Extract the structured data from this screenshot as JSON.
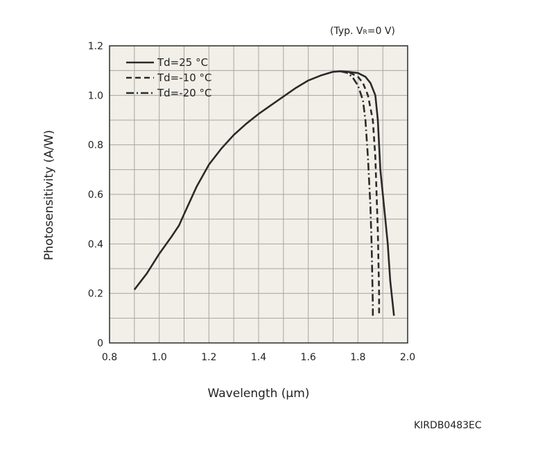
{
  "chart_data": {
    "type": "line",
    "conditions": {
      "prefix": "(Typ. V",
      "subscript": "R",
      "suffix": "=0 V)"
    },
    "code": "KIRDB0483EC",
    "xlabel": "Wavelength (µm)",
    "ylabel": "Photosensitivity (A/W)",
    "xlim": [
      0.8,
      2.0
    ],
    "ylim": [
      0,
      1.2
    ],
    "x_ticks": [
      "0.8",
      "1.0",
      "1.2",
      "1.4",
      "1.6",
      "1.8",
      "2.0"
    ],
    "y_ticks": [
      "0",
      "0.2",
      "0.4",
      "0.6",
      "0.8",
      "1.0",
      "1.2"
    ],
    "grid": true,
    "legend_position": "top-left",
    "series": [
      {
        "name": "Td=25 °C",
        "style": "solid",
        "x": [
          0.9,
          0.95,
          1.0,
          1.05,
          1.08,
          1.1,
          1.15,
          1.2,
          1.25,
          1.3,
          1.35,
          1.4,
          1.45,
          1.5,
          1.55,
          1.6,
          1.65,
          1.7,
          1.73,
          1.76,
          1.8,
          1.83,
          1.85,
          1.87,
          1.88,
          1.885,
          1.89,
          1.9,
          1.91,
          1.92,
          1.93,
          1.945
        ],
        "y": [
          0.215,
          0.28,
          0.36,
          0.43,
          0.475,
          0.52,
          0.63,
          0.72,
          0.785,
          0.84,
          0.885,
          0.925,
          0.96,
          0.995,
          1.03,
          1.06,
          1.08,
          1.095,
          1.097,
          1.095,
          1.09,
          1.075,
          1.05,
          1.0,
          0.9,
          0.8,
          0.7,
          0.6,
          0.5,
          0.4,
          0.25,
          0.11
        ]
      },
      {
        "name": "Td=-10 °C",
        "style": "dashed",
        "x": [
          1.73,
          1.77,
          1.8,
          1.82,
          1.84,
          1.86,
          1.87,
          1.875,
          1.88,
          1.883,
          1.885,
          1.885
        ],
        "y": [
          1.097,
          1.09,
          1.075,
          1.05,
          1.0,
          0.9,
          0.75,
          0.6,
          0.45,
          0.3,
          0.2,
          0.11
        ]
      },
      {
        "name": "Td=-20 °C",
        "style": "dash-dot",
        "x": [
          1.73,
          1.76,
          1.78,
          1.8,
          1.82,
          1.83,
          1.84,
          1.85,
          1.855,
          1.858,
          1.86,
          1.86
        ],
        "y": [
          1.097,
          1.09,
          1.07,
          1.04,
          0.98,
          0.9,
          0.75,
          0.55,
          0.4,
          0.25,
          0.15,
          0.11
        ]
      }
    ]
  },
  "colors": {
    "plot_bg": "#f1efe7",
    "grid": "#a5a5a5",
    "axis": "#2a2a2a",
    "line": "#2a2a2a"
  }
}
